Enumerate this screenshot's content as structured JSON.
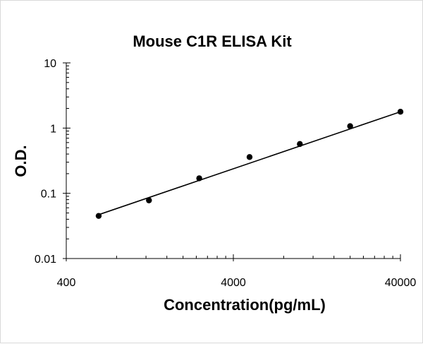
{
  "chart_data": {
    "type": "scatter",
    "title": "Mouse C1R ELISA Kit",
    "xlabel": "Concentration(pg/mL)",
    "ylabel": "O.D.",
    "x_scale": "log",
    "y_scale": "log",
    "xlim": [
      400,
      40000
    ],
    "ylim": [
      0.01,
      10
    ],
    "x_ticks": [
      400,
      4000,
      40000
    ],
    "x_tick_labels": [
      "400",
      "4000",
      "40000"
    ],
    "y_ticks": [
      0.01,
      0.1,
      1,
      10
    ],
    "y_tick_labels": [
      "0.01",
      "0.1",
      "1",
      "10"
    ],
    "grid": false,
    "legend": "none",
    "series": [
      {
        "marker_color": "#000000",
        "x": [
          625,
          1250,
          2500,
          5000,
          10000,
          20000,
          40000
        ],
        "y": [
          0.045,
          0.078,
          0.17,
          0.36,
          0.57,
          1.07,
          1.78
        ]
      }
    ],
    "fit_line": {
      "color": "#000000",
      "x": [
        625,
        40000
      ],
      "y": [
        0.047,
        1.78
      ]
    }
  }
}
